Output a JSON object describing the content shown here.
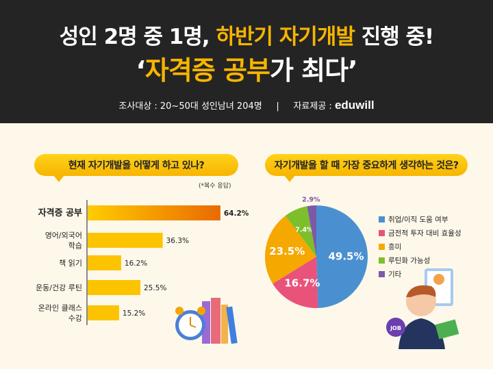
{
  "header": {
    "title_line1_a": "성인 2명 중 1명, ",
    "title_line1_b": "하반기 자기개발",
    "title_line1_c": " 진행 중!",
    "title_line2_a": "‘",
    "title_line2_b": "자격증 공부",
    "title_line2_c": "가 최다’",
    "survey": "조사대상 : 20~50대 성인남녀 204명",
    "divider": "|",
    "source_label": "자료제공 : ",
    "source_logo": "eduwill"
  },
  "colors": {
    "accent": "#f7b500",
    "header_bg": "#242424",
    "bg": "#fdf8ea"
  },
  "chart_data": [
    {
      "type": "bar",
      "orientation": "horizontal",
      "title": "현재 자기개발을 어떻게 하고 있나?",
      "note": "(*복수 응답)",
      "categories": [
        "자격증 공부",
        "영어/외국어 학습",
        "책 읽기",
        "운동/건강 루틴",
        "온라인 클래스 수강"
      ],
      "category_lines": [
        [
          "자격증 공부"
        ],
        [
          "영어/외국어",
          "학습"
        ],
        [
          "책 읽기"
        ],
        [
          "운동/건강 루틴"
        ],
        [
          "온라인 클래스",
          "수강"
        ]
      ],
      "values": [
        64.2,
        36.3,
        16.2,
        25.5,
        15.2
      ],
      "labels": [
        "64.2%",
        "36.3%",
        "16.2%",
        "25.5%",
        "15.2%"
      ],
      "unit": "%"
    },
    {
      "type": "pie",
      "title": "자기개발을 할 때 가장 중요하게 생각하는 것은?",
      "categories": [
        "취업/이직 도움 여부",
        "금전적 투자 대비 효율성",
        "흥미",
        "루틴화 가능성",
        "기타"
      ],
      "values": [
        49.5,
        16.7,
        23.5,
        7.4,
        2.9
      ],
      "labels": [
        "49.5%",
        "16.7%",
        "23.5%",
        "7.4%",
        "2.9%"
      ],
      "colors": [
        "#4a90d0",
        "#e9527a",
        "#f5a800",
        "#7cbf2a",
        "#7b5aa6"
      ],
      "legend": "right"
    }
  ]
}
